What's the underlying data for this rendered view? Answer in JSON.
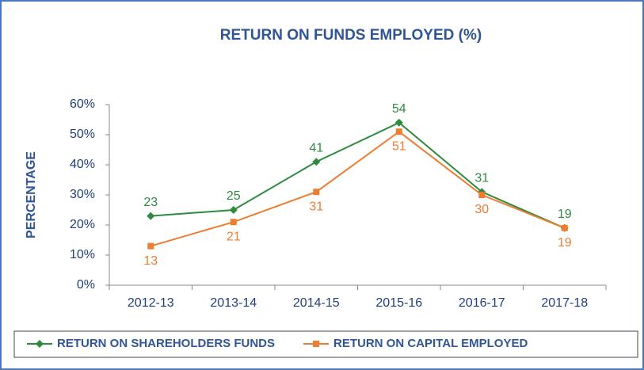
{
  "chart_data": {
    "type": "line",
    "title": "RETURN ON FUNDS EMPLOYED (%)",
    "y_label": "PERCENTAGE",
    "categories": [
      "2012-13",
      "2013-14",
      "2014-15",
      "2015-16",
      "2016-17",
      "2017-18"
    ],
    "series": [
      {
        "name": "RETURN ON SHAREHOLDERS FUNDS",
        "color": "#2e8b3e",
        "marker": "diamond",
        "values": [
          23,
          25,
          41,
          54,
          31,
          19
        ]
      },
      {
        "name": "RETURN ON CAPITAL EMPLOYED",
        "color": "#ed7d31",
        "marker": "square",
        "values": [
          13,
          21,
          31,
          51,
          30,
          19
        ]
      }
    ],
    "ylim": [
      0,
      60
    ],
    "yticks": [
      {
        "value": 0,
        "label": "0%"
      },
      {
        "value": 10,
        "label": "10%"
      },
      {
        "value": 20,
        "label": "20%"
      },
      {
        "value": 30,
        "label": "30%"
      },
      {
        "value": 40,
        "label": "40%"
      },
      {
        "value": 50,
        "label": "50%"
      },
      {
        "value": 60,
        "label": "60%"
      }
    ],
    "grid": false,
    "legend": "bottom"
  }
}
